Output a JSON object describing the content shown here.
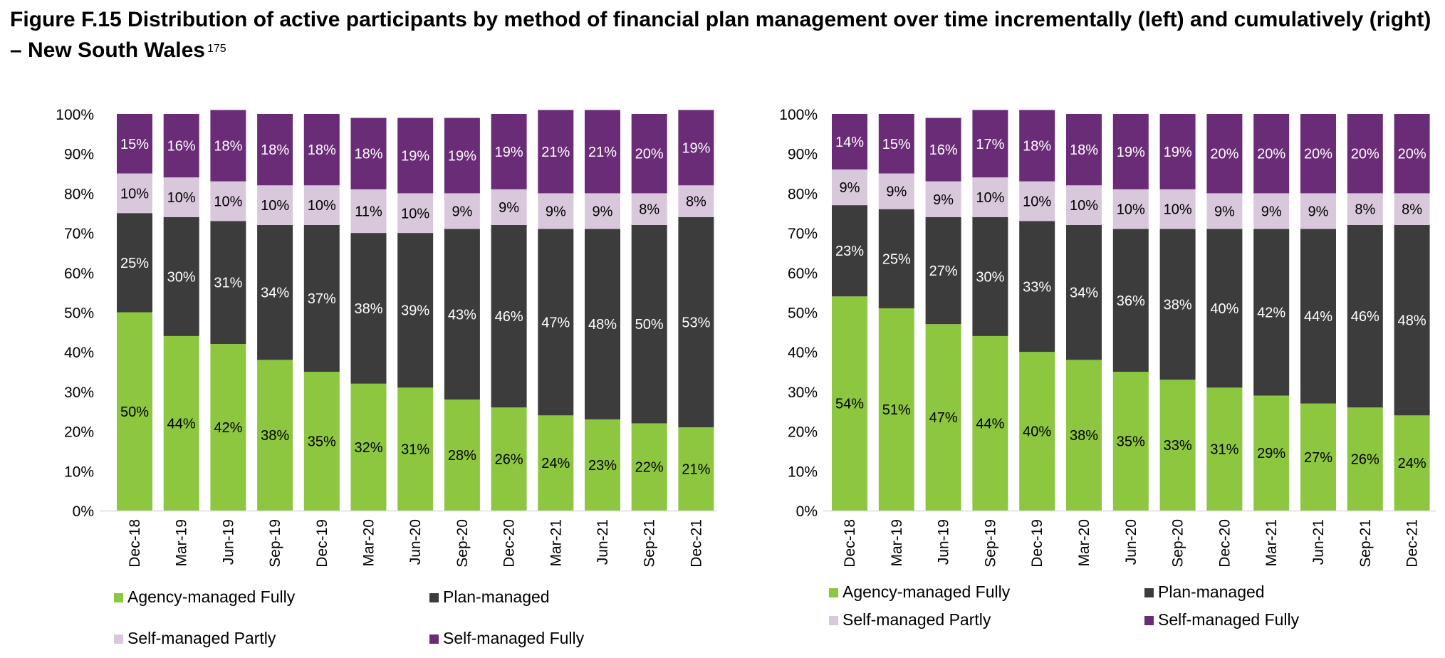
{
  "figure": {
    "title": "Figure F.15 Distribution of active participants by method of financial plan management over time incrementally (left) and cumulatively (right) – New South Wales",
    "footnote_ref": "175"
  },
  "colors": {
    "agency_fully": "#8DC63F",
    "plan_managed": "#3C3C3C",
    "self_partly": "#D9C8DC",
    "self_fully": "#6B2C77"
  },
  "chart_data": [
    {
      "type": "bar",
      "stacked": true,
      "percent_stacked": true,
      "categories": [
        "Dec-18",
        "Mar-19",
        "Jun-19",
        "Sep-19",
        "Dec-19",
        "Mar-20",
        "Jun-20",
        "Sep-20",
        "Dec-20",
        "Mar-21",
        "Jun-21",
        "Sep-21",
        "Dec-21"
      ],
      "ylim": [
        0,
        100
      ],
      "yticks": [
        "0%",
        "10%",
        "20%",
        "30%",
        "40%",
        "50%",
        "60%",
        "70%",
        "80%",
        "90%",
        "100%"
      ],
      "legend_position": "bottom",
      "series": [
        {
          "name": "Agency-managed Fully",
          "values": [
            50,
            44,
            42,
            38,
            35,
            32,
            31,
            28,
            26,
            24,
            23,
            22,
            21
          ]
        },
        {
          "name": "Plan-managed",
          "values": [
            25,
            30,
            31,
            34,
            37,
            38,
            39,
            43,
            46,
            47,
            48,
            50,
            53
          ]
        },
        {
          "name": "Self-managed Partly",
          "values": [
            10,
            10,
            10,
            10,
            10,
            11,
            10,
            9,
            9,
            9,
            9,
            8,
            8
          ]
        },
        {
          "name": "Self-managed Fully",
          "values": [
            15,
            16,
            18,
            18,
            18,
            18,
            19,
            19,
            19,
            21,
            21,
            20,
            19
          ]
        }
      ]
    },
    {
      "type": "bar",
      "stacked": true,
      "percent_stacked": true,
      "categories": [
        "Dec-18",
        "Mar-19",
        "Jun-19",
        "Sep-19",
        "Dec-19",
        "Mar-20",
        "Jun-20",
        "Sep-20",
        "Dec-20",
        "Mar-21",
        "Jun-21",
        "Sep-21",
        "Dec-21"
      ],
      "ylim": [
        0,
        100
      ],
      "yticks": [
        "0%",
        "10%",
        "20%",
        "30%",
        "40%",
        "50%",
        "60%",
        "70%",
        "80%",
        "90%",
        "100%"
      ],
      "legend_position": "bottom",
      "series": [
        {
          "name": "Agency-managed Fully",
          "values": [
            54,
            51,
            47,
            44,
            40,
            38,
            35,
            33,
            31,
            29,
            27,
            26,
            24
          ]
        },
        {
          "name": "Plan-managed",
          "values": [
            23,
            25,
            27,
            30,
            33,
            34,
            36,
            38,
            40,
            42,
            44,
            46,
            48
          ]
        },
        {
          "name": "Self-managed Partly",
          "values": [
            9,
            9,
            9,
            10,
            10,
            10,
            10,
            10,
            9,
            9,
            9,
            8,
            8
          ]
        },
        {
          "name": "Self-managed Fully",
          "values": [
            14,
            15,
            16,
            17,
            18,
            18,
            19,
            19,
            20,
            20,
            20,
            20,
            20
          ]
        }
      ]
    }
  ]
}
